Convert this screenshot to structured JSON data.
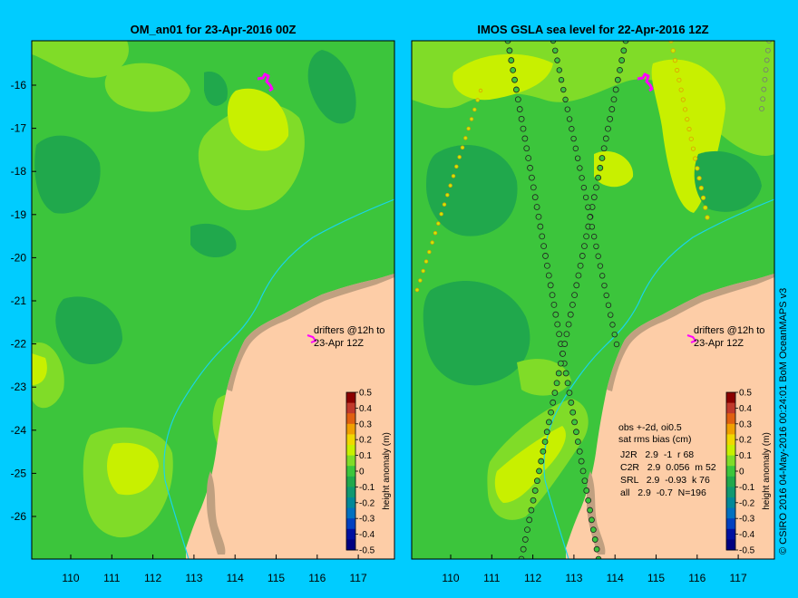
{
  "panels": [
    {
      "title": "OM_an01 for 23-Apr-2016 00Z",
      "drifter_note": [
        "drifters @12h to",
        "23-Apr 12Z"
      ],
      "colorbar_label": "height anomaly (m)"
    },
    {
      "title": "IMOS GSLA sea level  for 22-Apr-2016 12Z",
      "drifter_note": [
        "drifters @12h to",
        "23-Apr 12Z"
      ],
      "colorbar_label": "height anomaly (m)",
      "stats": {
        "header": [
          "obs +-2d, oi0.5",
          "sat rms bias (cm)"
        ],
        "rows": [
          "J2R   2.9  -1  r 68",
          "C2R   2.9  0.056  m 52",
          "SRL   2.9  -0.93  k 76",
          "all   2.9  -0.7  N=196"
        ]
      }
    }
  ],
  "lat_ticks": [
    "-16",
    "-17",
    "-18",
    "-19",
    "-20",
    "-21",
    "-22",
    "-23",
    "-24",
    "-25",
    "-26"
  ],
  "lon_ticks": [
    "110",
    "111",
    "112",
    "113",
    "114",
    "115",
    "116",
    "117"
  ],
  "colorbar_ticks": [
    "0.5",
    "0.4",
    "0.3",
    "0.2",
    "0.1",
    "0",
    "-0.1",
    "-0.2",
    "-0.3",
    "-0.4",
    "-0.5"
  ],
  "credit": "© CSIRO 2016   04-May-2016 00:24:01 BoM OceanMAPS v3",
  "colors": {
    "background": "#00ccff",
    "land": "#fdcda7",
    "green": "#3cc53c",
    "light_green": "#80dc28",
    "yellow_green": "#c8f000",
    "dark_green": "#20a84c",
    "drifter": "#ff00ff",
    "coast_rock": "#c0a080"
  },
  "colorbar_colors": [
    "#8b0000",
    "#c0392b",
    "#e06010",
    "#f0a000",
    "#f0d800",
    "#c8f000",
    "#80dc28",
    "#3cc53c",
    "#20a84c",
    "#109870",
    "#008898",
    "#0070c0",
    "#0040c0",
    "#0010a0",
    "#000080"
  ]
}
